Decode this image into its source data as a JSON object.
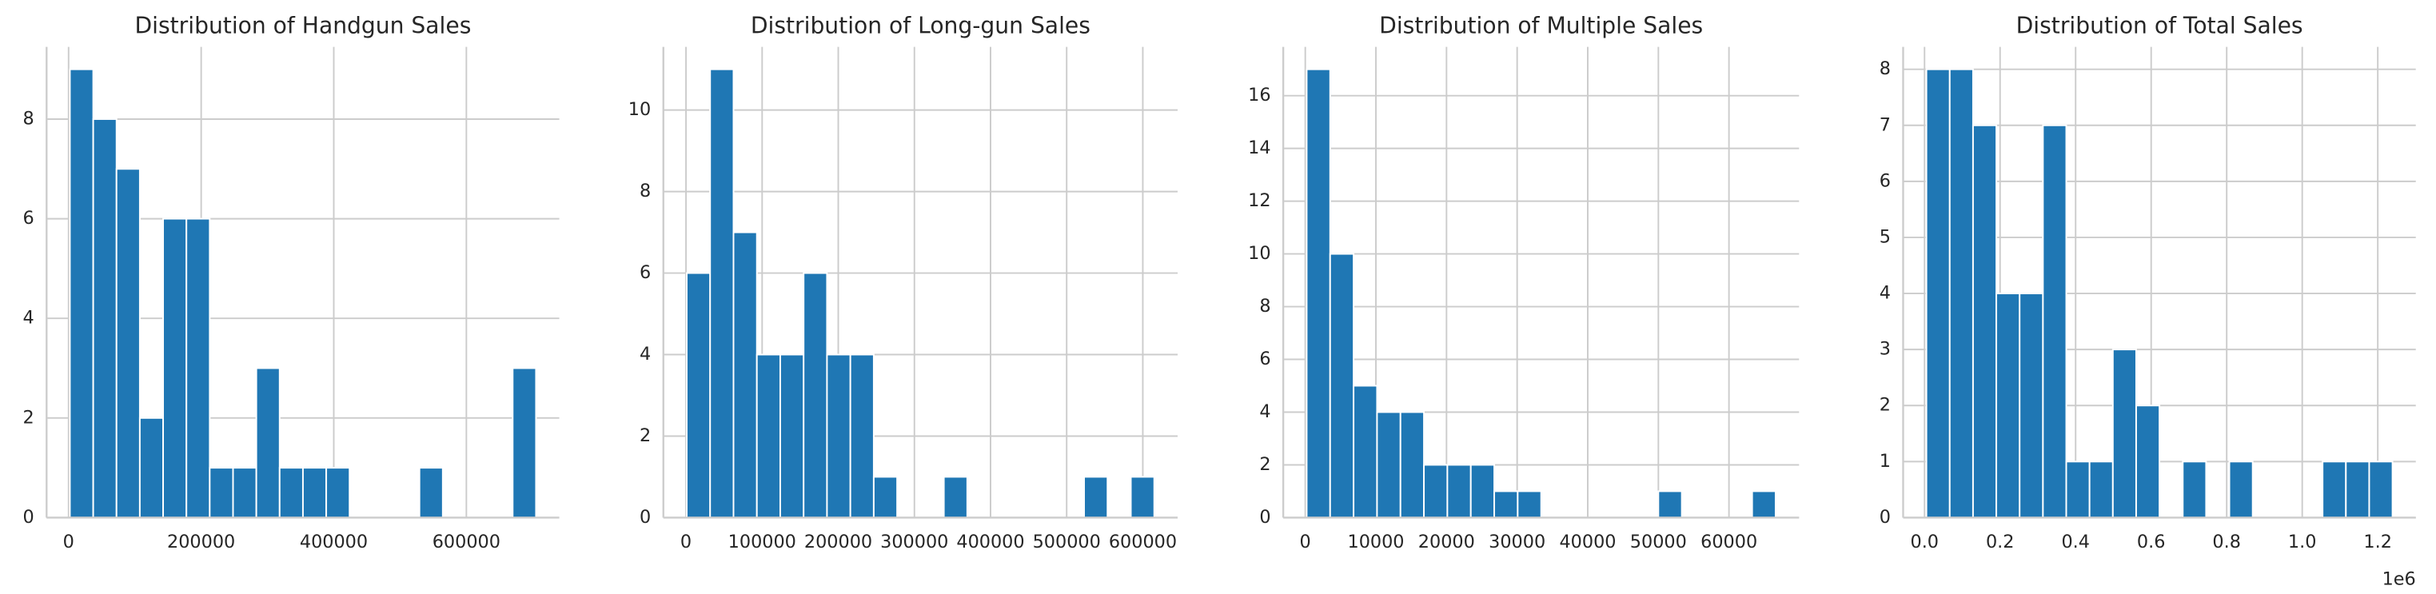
{
  "chart_data": [
    {
      "type": "histogram",
      "title": "Distribution of Handgun Sales",
      "color": "#1f77b4",
      "grid": true,
      "bins": [
        2000,
        37150,
        72300,
        107450,
        142600,
        177750,
        212900,
        248050,
        283200,
        318350,
        353500,
        388650,
        423800,
        458950,
        494100,
        529250,
        564400,
        599550,
        634700,
        669850,
        705000
      ],
      "values": [
        9,
        8,
        7,
        2,
        6,
        6,
        1,
        1,
        3,
        1,
        1,
        1,
        0,
        0,
        0,
        1,
        0,
        0,
        0,
        3
      ],
      "xlim": [
        -33150,
        740150
      ],
      "xticks": [
        0,
        200000,
        400000,
        600000
      ],
      "ylim": [
        0,
        9.45
      ],
      "yticks": [
        0,
        2,
        4,
        6,
        8
      ]
    },
    {
      "type": "histogram",
      "title": "Distribution of Long-gun Sales",
      "color": "#1f77b4",
      "grid": true,
      "bins": [
        1000,
        31700,
        62400,
        93100,
        123800,
        154500,
        185200,
        215900,
        246600,
        277300,
        308000,
        338700,
        369400,
        400100,
        430800,
        461500,
        492200,
        522900,
        553600,
        584300,
        615000
      ],
      "values": [
        6,
        11,
        7,
        4,
        4,
        6,
        4,
        4,
        1,
        0,
        0,
        1,
        0,
        0,
        0,
        0,
        0,
        1,
        0,
        1
      ],
      "xlim": [
        -29700,
        645700
      ],
      "xticks": [
        0,
        100000,
        200000,
        300000,
        400000,
        500000,
        600000
      ],
      "ylim": [
        0,
        11.55
      ],
      "yticks": [
        0,
        2,
        4,
        6,
        8,
        10
      ]
    },
    {
      "type": "histogram",
      "title": "Distribution of Multiple Sales",
      "color": "#1f77b4",
      "grid": true,
      "bins": [
        200,
        3520,
        6840,
        10160,
        13480,
        16800,
        20120,
        23440,
        26760,
        30080,
        33400,
        36720,
        40040,
        43360,
        46680,
        50000,
        53320,
        56640,
        59960,
        63280,
        66600
      ],
      "values": [
        17,
        10,
        5,
        4,
        4,
        2,
        2,
        2,
        1,
        1,
        0,
        0,
        0,
        0,
        0,
        1,
        0,
        0,
        0,
        1
      ],
      "xlim": [
        -3120,
        69920
      ],
      "xticks": [
        0,
        10000,
        20000,
        30000,
        40000,
        50000,
        60000
      ],
      "ylim": [
        0,
        17.85
      ],
      "yticks": [
        0,
        2,
        4,
        6,
        8,
        10,
        12,
        14,
        16
      ]
    },
    {
      "type": "histogram",
      "title": "Distribution of Total Sales",
      "color": "#1f77b4",
      "grid": true,
      "bins": [
        5000,
        66700,
        128400,
        190100,
        251800,
        313500,
        375200,
        436900,
        498600,
        560300,
        622000,
        683700,
        745400,
        807100,
        868800,
        930500,
        992200,
        1053900,
        1115600,
        1177300,
        1239000
      ],
      "values": [
        8,
        8,
        7,
        4,
        4,
        7,
        1,
        1,
        3,
        2,
        0,
        1,
        0,
        1,
        0,
        0,
        0,
        1,
        1,
        1
      ],
      "xlim": [
        -56700,
        1300700
      ],
      "xticks": [
        {
          "value": 0,
          "label": "0.0"
        },
        {
          "value": 200000,
          "label": "0.2"
        },
        {
          "value": 400000,
          "label": "0.4"
        },
        {
          "value": 600000,
          "label": "0.6"
        },
        {
          "value": 800000,
          "label": "0.8"
        },
        {
          "value": 1000000,
          "label": "1.0"
        },
        {
          "value": 1200000,
          "label": "1.2"
        }
      ],
      "x_offset_label": "1e6",
      "ylim": [
        0,
        8.4
      ],
      "yticks": [
        0,
        1,
        2,
        3,
        4,
        5,
        6,
        7,
        8
      ]
    }
  ]
}
